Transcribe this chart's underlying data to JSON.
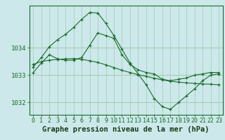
{
  "title": "Graphe pression niveau de la mer (hPa)",
  "xlabel_ticks": [
    "0",
    "1",
    "2",
    "3",
    "4",
    "5",
    "6",
    "7",
    "8",
    "9",
    "10",
    "11",
    "12",
    "13",
    "14",
    "15",
    "16",
    "17",
    "18",
    "19",
    "20",
    "21",
    "22",
    "23"
  ],
  "x": [
    0,
    1,
    2,
    3,
    4,
    5,
    6,
    7,
    8,
    9,
    10,
    11,
    12,
    13,
    14,
    15,
    16,
    17,
    18,
    19,
    20,
    21,
    22,
    23
  ],
  "line1": [
    1033.1,
    1033.45,
    1033.75,
    1033.6,
    1033.55,
    1033.55,
    1033.65,
    1034.1,
    1034.55,
    1034.45,
    1034.35,
    1033.75,
    1033.4,
    1033.2,
    1033.1,
    1033.05,
    1032.85,
    1032.8,
    1032.85,
    1032.9,
    1033.0,
    1033.05,
    1033.1,
    1033.1
  ],
  "line2": [
    1033.3,
    1033.65,
    1034.05,
    1034.3,
    1034.5,
    1034.75,
    1035.05,
    1035.3,
    1035.28,
    1034.9,
    1034.45,
    1033.95,
    1033.45,
    1033.05,
    1032.65,
    1032.15,
    1031.85,
    1031.75,
    1032.0,
    1032.25,
    1032.5,
    1032.8,
    1033.0,
    1033.05
  ],
  "line3": [
    1033.4,
    1033.5,
    1033.55,
    1033.58,
    1033.6,
    1033.61,
    1033.58,
    1033.53,
    1033.47,
    1033.38,
    1033.28,
    1033.18,
    1033.1,
    1033.02,
    1032.96,
    1032.89,
    1032.83,
    1032.78,
    1032.75,
    1032.72,
    1032.7,
    1032.68,
    1032.67,
    1032.65
  ],
  "line_color": "#1a6b2a",
  "bg_color": "#cce8ea",
  "grid_color": "#a0ccb0",
  "title_bg_color": "#5a9060",
  "title_text_color": "#1a3a1a",
  "ylim": [
    1031.55,
    1035.55
  ],
  "yticks": [
    1032,
    1033,
    1034
  ],
  "title_fontsize": 7.5,
  "tick_fontsize": 6.5
}
